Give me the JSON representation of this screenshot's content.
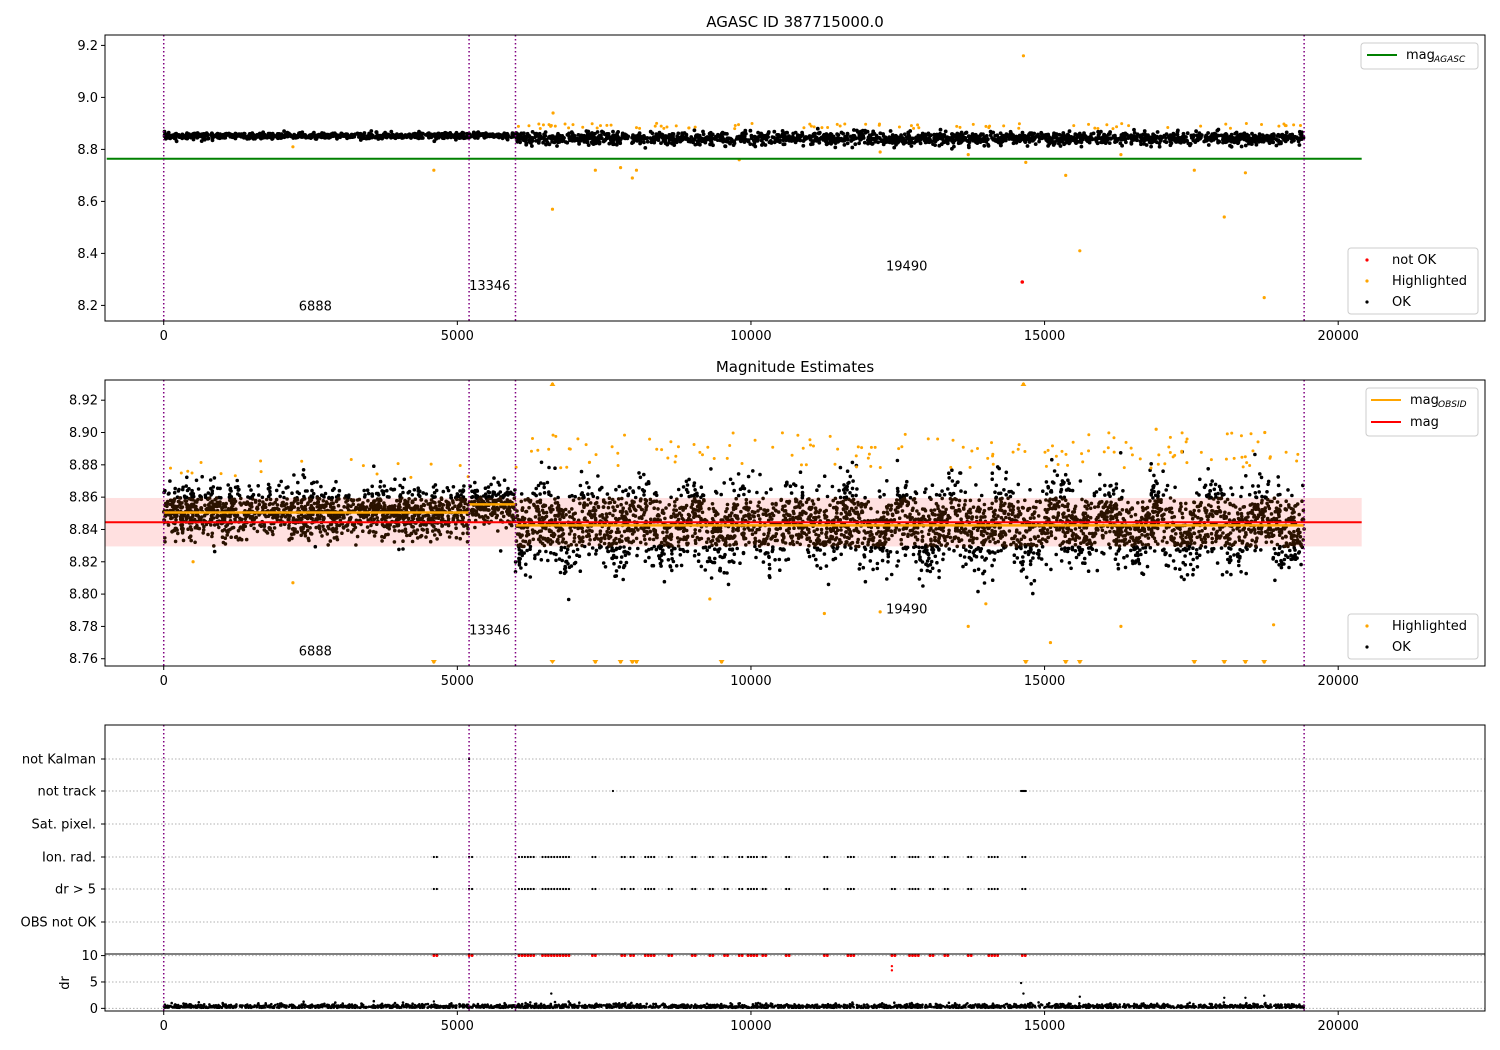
{
  "chart_data": [
    {
      "id": "panel1",
      "type": "scatter",
      "title": "AGASC ID 387715000.0",
      "xlim": [
        -1000,
        22500
      ],
      "ylim": [
        8.14,
        9.24
      ],
      "x_ticks": [
        0,
        5000,
        10000,
        15000,
        20000
      ],
      "y_ticks": [
        8.2,
        8.4,
        8.6,
        8.8,
        9.0,
        9.2
      ],
      "y_tick_labels": [
        "8.2",
        "8.4",
        "8.6",
        "8.8",
        "9.0",
        "9.2"
      ],
      "obs_boundaries": [
        0,
        5200,
        5990,
        19420
      ],
      "obs_labels": [
        {
          "text": "6888",
          "x": 2300,
          "y": 8.18
        },
        {
          "text": "13346",
          "x": 5200,
          "y": 8.26
        },
        {
          "text": "19490",
          "x": 12300,
          "y": 8.335
        }
      ],
      "mag_agasc": {
        "value": 8.764,
        "x_range": [
          0,
          20400
        ]
      },
      "ok_band": {
        "center": 8.845,
        "half_width": 0.012,
        "x_range": [
          0,
          19420
        ]
      },
      "highlighted_points": [
        [
          4600,
          8.72
        ],
        [
          6620,
          8.57
        ],
        [
          7350,
          8.72
        ],
        [
          7780,
          8.73
        ],
        [
          7980,
          8.69
        ],
        [
          8050,
          8.72
        ],
        [
          9800,
          8.76
        ],
        [
          13700,
          8.78
        ],
        [
          14640,
          9.16
        ],
        [
          14680,
          8.75
        ],
        [
          15360,
          8.7
        ],
        [
          15600,
          8.41
        ],
        [
          16300,
          8.78
        ],
        [
          17550,
          8.72
        ],
        [
          18060,
          8.54
        ],
        [
          18420,
          8.71
        ],
        [
          18740,
          8.23
        ],
        [
          6630,
          8.94
        ],
        [
          2200,
          8.81
        ],
        [
          12200,
          8.79
        ]
      ],
      "not_ok_points": [
        [
          14620,
          8.29
        ]
      ],
      "legend_line": {
        "label": "mag",
        "sub": "AGASC",
        "color": "#008000"
      },
      "legend_points": [
        {
          "label": "not OK",
          "color": "#ff0000"
        },
        {
          "label": "Highlighted",
          "color": "#ffa500"
        },
        {
          "label": "OK",
          "color": "#000000"
        }
      ]
    },
    {
      "id": "panel2",
      "type": "scatter",
      "title": "Magnitude Estimates",
      "xlim": [
        -1000,
        22500
      ],
      "ylim": [
        8.7555,
        8.9325
      ],
      "x_ticks": [
        0,
        5000,
        10000,
        15000,
        20000
      ],
      "y_ticks": [
        8.76,
        8.78,
        8.8,
        8.82,
        8.84,
        8.86,
        8.88,
        8.9,
        8.92
      ],
      "y_tick_labels": [
        "8.76",
        "8.78",
        "8.80",
        "8.82",
        "8.84",
        "8.86",
        "8.88",
        "8.90",
        "8.92"
      ],
      "obs_boundaries": [
        0,
        5200,
        5990,
        19420
      ],
      "obs_labels": [
        {
          "text": "6888",
          "x": 2300,
          "y": 8.762
        },
        {
          "text": "13346",
          "x": 5200,
          "y": 8.775
        },
        {
          "text": "19490",
          "x": 12300,
          "y": 8.788
        }
      ],
      "mag": {
        "value": 8.8445,
        "x_range": [
          -1000,
          20400
        ]
      },
      "mag_band": {
        "low": 8.8295,
        "high": 8.8595,
        "x_range": [
          -1000,
          20400
        ]
      },
      "mag_obsid": [
        {
          "x_range": [
            0,
            5200
          ],
          "value": 8.8505
        },
        {
          "x_range": [
            5200,
            5990
          ],
          "value": 8.8555
        },
        {
          "x_range": [
            5990,
            19420
          ],
          "value": 8.8425
        }
      ],
      "highlighted_points": [
        [
          2200,
          8.807
        ],
        [
          4600,
          8.758
        ],
        [
          7350,
          8.758
        ],
        [
          7780,
          8.758
        ],
        [
          7980,
          8.758
        ],
        [
          8050,
          8.758
        ],
        [
          9500,
          8.758
        ],
        [
          12200,
          8.789
        ],
        [
          13700,
          8.78
        ],
        [
          14000,
          8.794
        ],
        [
          14640,
          8.93
        ],
        [
          14680,
          8.758
        ],
        [
          15100,
          8.77
        ],
        [
          15360,
          8.758
        ],
        [
          15600,
          8.758
        ],
        [
          16300,
          8.78
        ],
        [
          17550,
          8.758
        ],
        [
          18060,
          8.758
        ],
        [
          18420,
          8.758
        ],
        [
          18740,
          8.758
        ],
        [
          18900,
          8.781
        ],
        [
          6620,
          8.93
        ],
        [
          9300,
          8.797
        ],
        [
          500,
          8.82
        ],
        [
          18750,
          8.9
        ],
        [
          16900,
          8.902
        ],
        [
          11250,
          8.788
        ]
      ],
      "down_markers": [
        4600,
        6620,
        7350,
        7780,
        7980,
        8050,
        9500,
        14680,
        15360,
        15600,
        17550,
        18060,
        18420,
        18740
      ],
      "up_markers": [
        6620,
        14640
      ],
      "legend_lines": [
        {
          "label": "mag",
          "sub": "OBSID",
          "color": "#ffa500"
        },
        {
          "label": "mag",
          "sub": "",
          "color": "#ff0000"
        }
      ],
      "legend_points": [
        {
          "label": "Highlighted",
          "color": "#ffa500"
        },
        {
          "label": "OK",
          "color": "#000000"
        }
      ]
    },
    {
      "id": "panel3",
      "type": "scatter",
      "xlim": [
        -1000,
        22500
      ],
      "x_ticks": [
        0,
        5000,
        10000,
        15000,
        20000
      ],
      "obs_boundaries": [
        0,
        5200,
        5990,
        19420
      ],
      "flag_rows": [
        "not Kalman",
        "not track",
        "Sat. pixel.",
        "Ion. rad.",
        "dr > 5",
        "OBS not OK"
      ],
      "flag_points": {
        "not Kalman": [
          5200
        ],
        "not track": [
          7650,
          14600,
          14620,
          14640,
          14660,
          14680
        ],
        "Sat. pixel.": [],
        "Ion. rad.": [
          4600,
          5200,
          6050,
          6150,
          6250,
          6450,
          6550,
          6650,
          6750,
          6850,
          7300,
          7800,
          7950,
          8200,
          8300,
          8600,
          9000,
          9300,
          9550,
          9800,
          9950,
          10050,
          10200,
          10600,
          11250,
          11650,
          11700,
          12400,
          12700,
          12800,
          13050,
          13300,
          13700,
          14050,
          14150,
          14620
        ],
        "dr > 5": [
          4600,
          5200,
          6050,
          6150,
          6250,
          6450,
          6550,
          6650,
          6750,
          6850,
          7300,
          7800,
          7950,
          8200,
          8300,
          8600,
          9000,
          9300,
          9550,
          9800,
          9950,
          10050,
          10200,
          10600,
          11250,
          11650,
          11700,
          12400,
          12700,
          12800,
          13050,
          13300,
          13700,
          14050,
          14150,
          14620
        ],
        "OBS not OK": []
      },
      "dr": {
        "ylabel": "dr",
        "ylim": [
          -0.5,
          10.3
        ],
        "y_ticks": [
          0,
          5,
          10
        ],
        "y_tick_labels": [
          "0",
          "5",
          "10"
        ],
        "saturated_x": [
          4600,
          5200,
          6050,
          6150,
          6250,
          6450,
          6550,
          6650,
          6750,
          6850,
          7300,
          7800,
          7950,
          8200,
          8300,
          8600,
          9000,
          9300,
          9550,
          9800,
          9950,
          10050,
          10200,
          10600,
          11250,
          11650,
          11700,
          12400,
          12700,
          12800,
          13050,
          13300,
          13700,
          14050,
          14150,
          14620
        ],
        "outliers": [
          [
            6600,
            2.8
          ],
          [
            12400,
            8.0
          ],
          [
            12400,
            7.2
          ],
          [
            14600,
            4.8
          ],
          [
            14640,
            2.8
          ],
          [
            15600,
            2.2
          ],
          [
            18060,
            2.0
          ],
          [
            18420,
            2.0
          ],
          [
            18740,
            2.4
          ],
          [
            4600,
            1.3
          ]
        ]
      }
    }
  ]
}
